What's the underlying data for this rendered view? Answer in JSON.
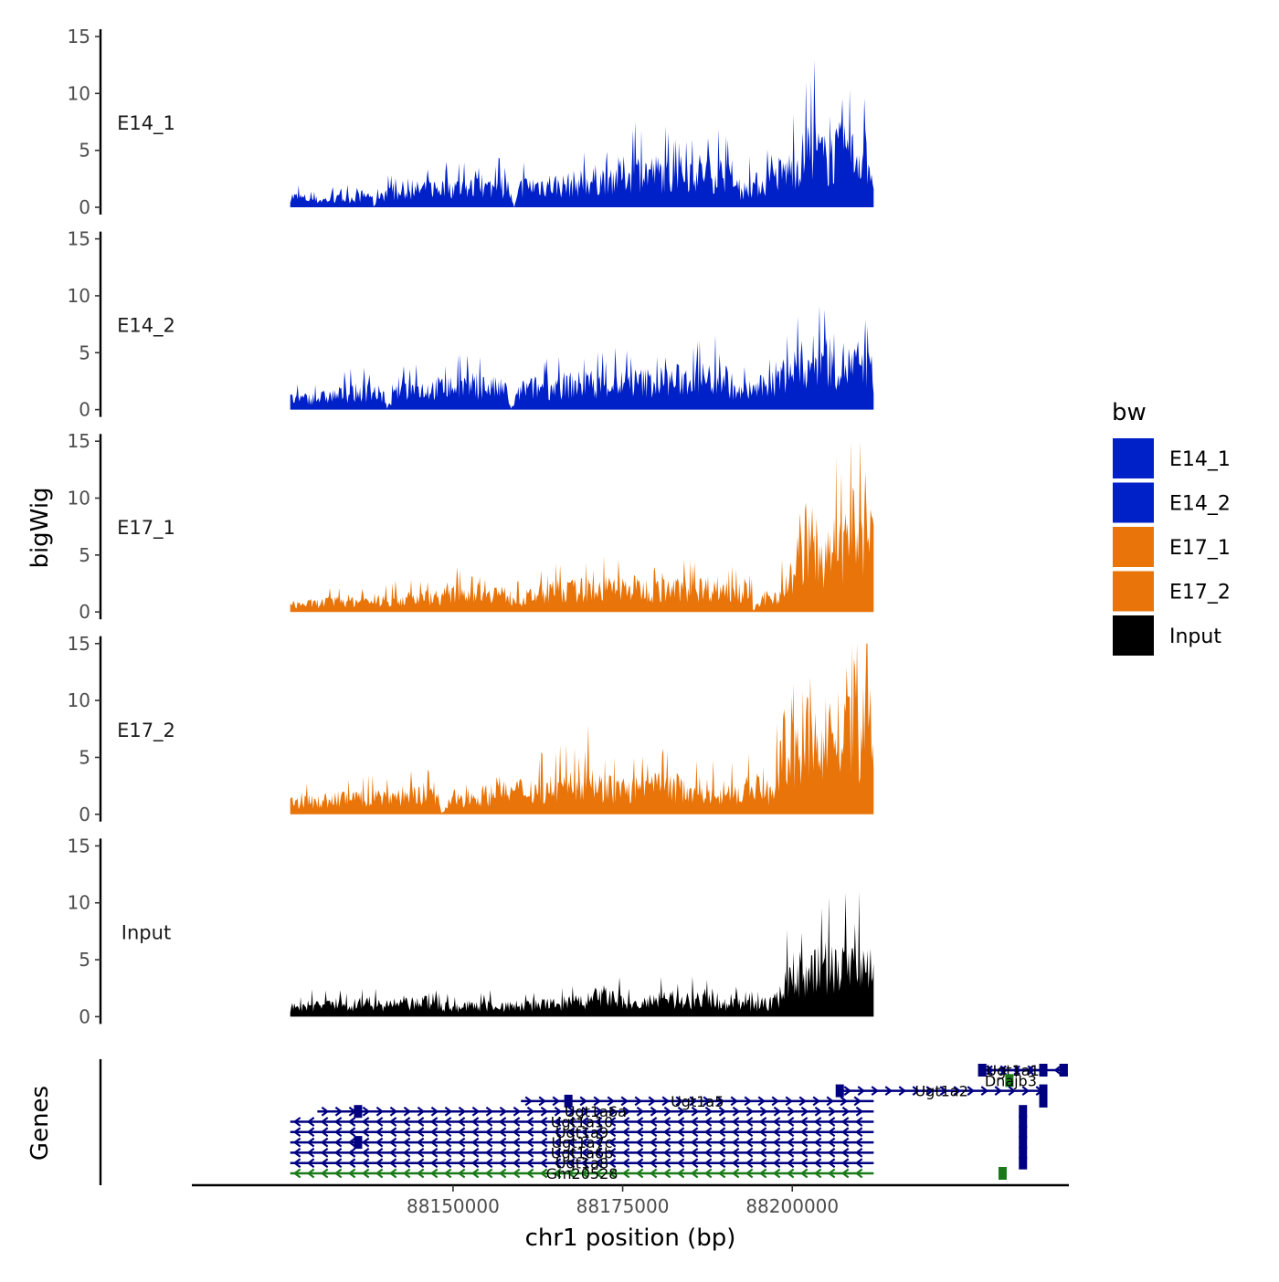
{
  "chart_data": {
    "type": "area",
    "y_axis_title": "bigWig",
    "x_axis_title": "chr1 position (bp)",
    "genes_axis_title": "Genes",
    "xlim": [
      88111500,
      88240500
    ],
    "ylim": [
      0,
      15
    ],
    "y_ticks": [
      0,
      5,
      10,
      15
    ],
    "y_tick_labels": [
      "0",
      "5",
      "10",
      "15"
    ],
    "x_ticks": [
      88150000,
      88175000,
      88200000
    ],
    "x_tick_labels": [
      "88150000",
      "88175000",
      "88200000"
    ],
    "signal_start": 88126000,
    "signal_end": 88212000,
    "legend": {
      "title": "bw",
      "items": [
        {
          "label": "E14_1",
          "color": "#0020C8"
        },
        {
          "label": "E14_2",
          "color": "#0020C8"
        },
        {
          "label": "E17_1",
          "color": "#E8740A"
        },
        {
          "label": "E17_2",
          "color": "#E8740A"
        },
        {
          "label": "Input",
          "color": "#000000"
        }
      ]
    },
    "tracks": [
      {
        "name": "E14_1",
        "color": "#0020C8",
        "x": [
          88126000,
          88130000,
          88134000,
          88138000,
          88138300,
          88139000,
          88142000,
          88146000,
          88150000,
          88154000,
          88158000,
          88159000,
          88160000,
          88164000,
          88166000,
          88170000,
          88174000,
          88178000,
          88180000,
          88182000,
          88186000,
          88189000,
          88190000,
          88192000,
          88194000,
          88196000,
          88198000,
          88199000,
          88200000,
          88201000,
          88203000,
          88205000,
          88207000,
          88208000,
          88209000,
          88210000,
          88211000,
          88212000
        ],
        "y": [
          1.5,
          1.0,
          1.2,
          1.8,
          0.0,
          2.0,
          1.8,
          2.6,
          2.8,
          2.6,
          3.0,
          0.0,
          2.8,
          3.2,
          3.0,
          3.6,
          4.4,
          5.0,
          4.8,
          4.4,
          5.0,
          4.6,
          4.8,
          2.0,
          3.0,
          3.4,
          4.6,
          5.0,
          5.4,
          6.2,
          8.4,
          6.4,
          7.6,
          8.2,
          7.0,
          7.4,
          7.2,
          4.0
        ]
      },
      {
        "name": "E14_2",
        "color": "#0020C8",
        "x": [
          88126000,
          88130000,
          88134000,
          88138000,
          88140000,
          88140200,
          88142000,
          88146000,
          88150000,
          88154000,
          88158000,
          88158500,
          88160000,
          88164000,
          88170000,
          88174000,
          88178000,
          88182000,
          88186000,
          88189000,
          88190000,
          88192000,
          88194000,
          88196000,
          88198000,
          88200000,
          88202000,
          88205000,
          88207000,
          88209000,
          88210000,
          88211000,
          88212000
        ],
        "y": [
          1.4,
          1.6,
          2.2,
          2.6,
          1.8,
          0.0,
          3.0,
          2.8,
          3.2,
          3.4,
          2.6,
          0.0,
          2.8,
          3.2,
          3.6,
          3.6,
          3.8,
          4.0,
          4.4,
          4.2,
          4.6,
          2.2,
          2.8,
          3.2,
          4.6,
          5.6,
          6.4,
          7.2,
          6.4,
          5.8,
          6.6,
          5.6,
          4.8
        ]
      },
      {
        "name": "E17_1",
        "color": "#E8740A",
        "x": [
          88126000,
          88130000,
          88134000,
          88138000,
          88142000,
          88146000,
          88150000,
          88154000,
          88158000,
          88160000,
          88162000,
          88164000,
          88168000,
          88172000,
          88176000,
          88180000,
          88184000,
          88188000,
          88192000,
          88194000,
          88194200,
          88196000,
          88198000,
          88200000,
          88202000,
          88204000,
          88205000,
          88206000,
          88207000,
          88208000,
          88209000,
          88210000,
          88211000,
          88212000
        ],
        "y": [
          1.0,
          1.2,
          1.6,
          1.4,
          1.8,
          2.0,
          2.4,
          3.5,
          2.2,
          1.6,
          2.4,
          2.8,
          3.0,
          3.2,
          3.4,
          3.0,
          3.2,
          3.4,
          3.0,
          3.6,
          0.0,
          2.0,
          2.4,
          5.0,
          10.0,
          8.6,
          6.6,
          9.4,
          7.8,
          10.6,
          11.0,
          11.8,
          9.0,
          11.0
        ]
      },
      {
        "name": "E17_2",
        "color": "#E8740A",
        "x": [
          88126000,
          88130000,
          88134000,
          88138000,
          88142000,
          88146000,
          88148000,
          88148200,
          88150000,
          88154000,
          88158000,
          88160000,
          88164000,
          88168000,
          88170000,
          88172000,
          88176000,
          88180000,
          88184000,
          88188000,
          88192000,
          88195000,
          88197000,
          88198000,
          88199000,
          88200000,
          88201000,
          88202000,
          88203000,
          88204000,
          88206000,
          88208000,
          88209000,
          88210000,
          88211000,
          88212000
        ],
        "y": [
          1.6,
          1.8,
          2.2,
          2.4,
          2.6,
          3.0,
          1.8,
          0.0,
          2.2,
          2.6,
          3.0,
          3.4,
          3.6,
          4.0,
          5.2,
          3.6,
          3.4,
          3.8,
          3.6,
          3.2,
          3.0,
          3.8,
          2.8,
          6.4,
          10.0,
          9.2,
          7.2,
          11.8,
          8.4,
          10.6,
          12.0,
          9.6,
          15.0,
          8.0,
          12.8,
          11.8
        ]
      },
      {
        "name": "Input",
        "color": "#000000",
        "x": [
          88126000,
          88130000,
          88134000,
          88138000,
          88142000,
          88146000,
          88150000,
          88154000,
          88158000,
          88162000,
          88166000,
          88170000,
          88172000,
          88174000,
          88176000,
          88178000,
          88180000,
          88184000,
          88188000,
          88190000,
          88194000,
          88196000,
          88198000,
          88199000,
          88200000,
          88201000,
          88202000,
          88204000,
          88206000,
          88208000,
          88210000,
          88211000,
          88212000
        ],
        "y": [
          1.2,
          1.6,
          1.8,
          1.8,
          1.6,
          2.0,
          1.2,
          1.6,
          1.4,
          1.6,
          1.8,
          2.2,
          3.0,
          2.4,
          1.6,
          1.8,
          2.2,
          2.4,
          2.6,
          1.8,
          1.6,
          1.8,
          2.4,
          5.2,
          5.6,
          6.2,
          5.8,
          6.6,
          7.0,
          6.8,
          7.2,
          7.8,
          6.8
        ]
      }
    ],
    "genes": [
      {
        "name": "",
        "start": 88240000,
        "end": 88228000,
        "strand": "-",
        "row": 0,
        "color": "#000080",
        "exons": [
          88228000,
          88237000,
          88240000
        ]
      },
      {
        "name": "Ugt1a1",
        "start": 88228000,
        "end": 88237000,
        "strand": "+",
        "row": 0,
        "color": "#000080",
        "exons": [
          88228000,
          88240000
        ]
      },
      {
        "name": "Dnajb3",
        "start": 88232000,
        "end": 88232400,
        "strand": "+",
        "row": 1,
        "color": "#1A7A1A",
        "exons": [
          88232000
        ]
      },
      {
        "name": "Ugt1a2",
        "start": 88207000,
        "end": 88237000,
        "strand": "+",
        "row": 2,
        "color": "#000080",
        "exons": [
          88207000,
          88237000
        ]
      },
      {
        "name": "Ugt1a5",
        "start": 88160000,
        "end": 88212000,
        "strand": "+",
        "row": 3,
        "color": "#000080",
        "exons": [
          88167000,
          88237000
        ]
      },
      {
        "name": "Ugt1a6a",
        "start": 88130000,
        "end": 88212000,
        "strand": "+",
        "row": 4,
        "color": "#000080",
        "exons": [
          88136000,
          88234000
        ]
      },
      {
        "name": "Ugt1a10",
        "start": 88126000,
        "end": 88212000,
        "strand": "-",
        "row": 5,
        "color": "#000080",
        "exons": [
          88234000
        ]
      },
      {
        "name": "Ugt1a9",
        "start": 88126000,
        "end": 88212000,
        "strand": "-",
        "row": 6,
        "color": "#000080",
        "exons": [
          88234000
        ]
      },
      {
        "name": "Ugt1a7c",
        "start": 88126000,
        "end": 88212000,
        "strand": "-",
        "row": 7,
        "color": "#000080",
        "exons": [
          88136000,
          88234000
        ]
      },
      {
        "name": "Ugt1a6b",
        "start": 88126000,
        "end": 88212000,
        "strand": "-",
        "row": 8,
        "color": "#000080",
        "exons": [
          88234000
        ]
      },
      {
        "name": "Ugt1a8",
        "start": 88126000,
        "end": 88212000,
        "strand": "-",
        "row": 9,
        "color": "#000080",
        "exons": [
          88234000
        ]
      },
      {
        "name": "Gm20528",
        "start": 88126000,
        "end": 88212000,
        "strand": "-",
        "row": 10,
        "color": "#1A7A1A",
        "exons": [
          88231000
        ]
      }
    ]
  }
}
